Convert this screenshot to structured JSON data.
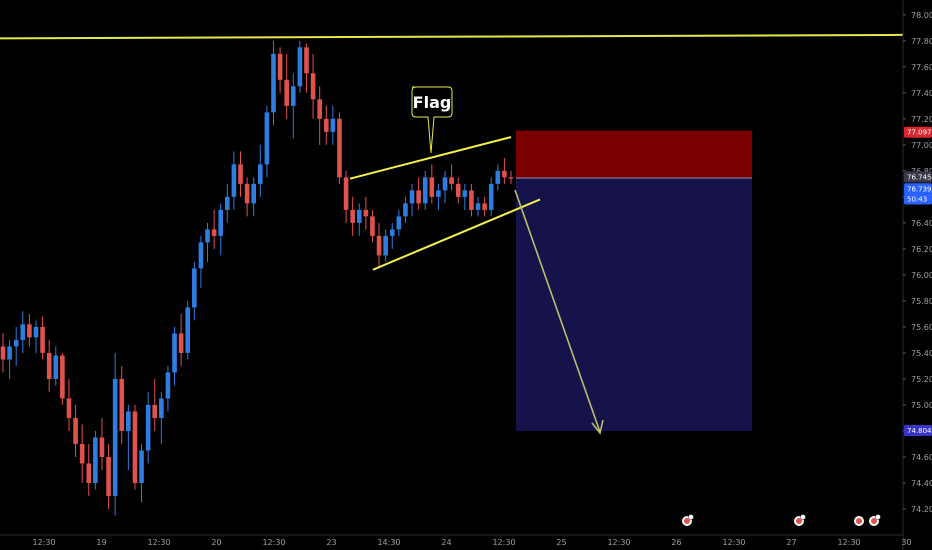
{
  "colors": {
    "background": "#000000",
    "up_candle": "#2f7de1",
    "down_candle": "#e0524e",
    "resistance_line": "#e8e84a",
    "channel": "#f2f24e",
    "arrow": "#bdbd6a",
    "stop_zone": "#7a0000",
    "target_zone": "#15134a",
    "tag_red": "#d7272e",
    "tag_blue": "#2962ff",
    "tag_indigo": "#3b34c9",
    "axis_text": "#9aa0a6"
  },
  "annotation": {
    "flag_label": "Flag"
  },
  "chart_data": {
    "type": "candlestick",
    "title": "",
    "xlabel": "",
    "ylabel": "",
    "ylim": [
      74.1,
      78.06
    ],
    "y_ticks": [
      "78.000",
      "77.800",
      "77.600",
      "77.400",
      "77.200",
      "77.000",
      "76.800",
      "76.600",
      "76.400",
      "76.200",
      "76.000",
      "75.800",
      "75.600",
      "75.400",
      "75.200",
      "75.000",
      "74.800",
      "74.600",
      "74.400",
      "74.200"
    ],
    "x_ticks": [
      "12:30",
      "19",
      "12:30",
      "20",
      "12:30",
      "23",
      "14:30",
      "24",
      "12:30",
      "25",
      "12:30",
      "26",
      "12:30",
      "27",
      "12:30",
      "30"
    ],
    "price_tags": [
      {
        "label": "77.097",
        "value": 77.097,
        "style": "red"
      },
      {
        "label": "76.745",
        "value": 76.745,
        "style": "dark"
      },
      {
        "label": "76.739",
        "value": 76.739,
        "style": "blue"
      },
      {
        "label": "50:43",
        "value": 76.63,
        "style": "blue"
      },
      {
        "label": "74.804",
        "value": 74.804,
        "style": "indigo"
      }
    ],
    "resistance_level": 77.83,
    "trade": {
      "stop": 77.11,
      "entry": 76.745,
      "target": 74.8
    },
    "candles": [
      [
        75.45,
        75.55,
        75.25,
        75.35
      ],
      [
        75.35,
        75.5,
        75.2,
        75.45
      ],
      [
        75.45,
        75.6,
        75.3,
        75.5
      ],
      [
        75.5,
        75.72,
        75.4,
        75.62
      ],
      [
        75.62,
        75.7,
        75.45,
        75.52
      ],
      [
        75.52,
        75.65,
        75.4,
        75.6
      ],
      [
        75.6,
        75.68,
        75.35,
        75.4
      ],
      [
        75.4,
        75.5,
        75.1,
        75.2
      ],
      [
        75.2,
        75.45,
        75.15,
        75.38
      ],
      [
        75.38,
        75.4,
        75.0,
        75.05
      ],
      [
        75.05,
        75.2,
        74.8,
        74.9
      ],
      [
        74.9,
        75.0,
        74.6,
        74.7
      ],
      [
        74.7,
        74.85,
        74.4,
        74.55
      ],
      [
        74.55,
        74.7,
        74.3,
        74.4
      ],
      [
        74.4,
        74.8,
        74.35,
        74.75
      ],
      [
        74.75,
        74.9,
        74.5,
        74.6
      ],
      [
        74.6,
        74.7,
        74.2,
        74.3
      ],
      [
        74.3,
        75.4,
        74.15,
        75.2
      ],
      [
        75.2,
        75.3,
        74.7,
        74.8
      ],
      [
        74.8,
        75.0,
        74.5,
        74.95
      ],
      [
        74.95,
        75.0,
        74.35,
        74.4
      ],
      [
        74.4,
        74.7,
        74.25,
        74.65
      ],
      [
        74.65,
        75.1,
        74.55,
        75.0
      ],
      [
        75.0,
        75.2,
        74.8,
        74.9
      ],
      [
        74.9,
        75.1,
        74.7,
        75.05
      ],
      [
        75.05,
        75.3,
        74.95,
        75.25
      ],
      [
        75.25,
        75.6,
        75.15,
        75.55
      ],
      [
        75.55,
        75.7,
        75.3,
        75.4
      ],
      [
        75.4,
        75.8,
        75.35,
        75.75
      ],
      [
        75.75,
        76.1,
        75.65,
        76.05
      ],
      [
        76.05,
        76.3,
        75.9,
        76.25
      ],
      [
        76.25,
        76.4,
        76.1,
        76.35
      ],
      [
        76.35,
        76.5,
        76.2,
        76.3
      ],
      [
        76.3,
        76.55,
        76.15,
        76.5
      ],
      [
        76.5,
        76.7,
        76.4,
        76.6
      ],
      [
        76.6,
        76.95,
        76.5,
        76.85
      ],
      [
        76.85,
        76.95,
        76.6,
        76.7
      ],
      [
        76.7,
        76.75,
        76.45,
        76.55
      ],
      [
        76.55,
        76.75,
        76.45,
        76.7
      ],
      [
        76.7,
        77.0,
        76.6,
        76.85
      ],
      [
        76.85,
        77.3,
        76.75,
        77.25
      ],
      [
        77.25,
        77.8,
        77.15,
        77.7
      ],
      [
        77.7,
        77.75,
        77.4,
        77.5
      ],
      [
        77.5,
        77.7,
        77.2,
        77.3
      ],
      [
        77.3,
        77.55,
        77.05,
        77.45
      ],
      [
        77.45,
        77.8,
        77.4,
        77.75
      ],
      [
        77.75,
        77.78,
        77.4,
        77.55
      ],
      [
        77.55,
        77.7,
        77.2,
        77.35
      ],
      [
        77.35,
        77.45,
        77.0,
        77.2
      ],
      [
        77.2,
        77.3,
        77.0,
        77.1
      ],
      [
        77.1,
        77.3,
        77.0,
        77.2
      ],
      [
        77.2,
        77.25,
        76.7,
        76.75
      ],
      [
        76.75,
        76.8,
        76.4,
        76.5
      ],
      [
        76.5,
        76.6,
        76.3,
        76.4
      ],
      [
        76.4,
        76.55,
        76.3,
        76.5
      ],
      [
        76.5,
        76.6,
        76.35,
        76.45
      ],
      [
        76.45,
        76.5,
        76.25,
        76.3
      ],
      [
        76.3,
        76.4,
        76.05,
        76.15
      ],
      [
        76.15,
        76.35,
        76.1,
        76.3
      ],
      [
        76.3,
        76.4,
        76.2,
        76.35
      ],
      [
        76.35,
        76.5,
        76.3,
        76.45
      ],
      [
        76.45,
        76.6,
        76.4,
        76.55
      ],
      [
        76.55,
        76.7,
        76.45,
        76.65
      ],
      [
        76.65,
        76.75,
        76.5,
        76.55
      ],
      [
        76.55,
        76.8,
        76.5,
        76.75
      ],
      [
        76.75,
        76.85,
        76.55,
        76.6
      ],
      [
        76.6,
        76.7,
        76.5,
        76.65
      ],
      [
        76.65,
        76.8,
        76.55,
        76.75
      ],
      [
        76.75,
        76.85,
        76.65,
        76.7
      ],
      [
        76.7,
        76.75,
        76.55,
        76.6
      ],
      [
        76.6,
        76.7,
        76.5,
        76.65
      ],
      [
        76.65,
        76.7,
        76.45,
        76.5
      ],
      [
        76.5,
        76.6,
        76.45,
        76.55
      ],
      [
        76.55,
        76.6,
        76.45,
        76.5
      ],
      [
        76.5,
        76.75,
        76.45,
        76.7
      ],
      [
        76.7,
        76.85,
        76.65,
        76.8
      ],
      [
        76.8,
        76.9,
        76.7,
        76.75
      ],
      [
        76.75,
        76.8,
        76.7,
        76.74
      ]
    ]
  }
}
